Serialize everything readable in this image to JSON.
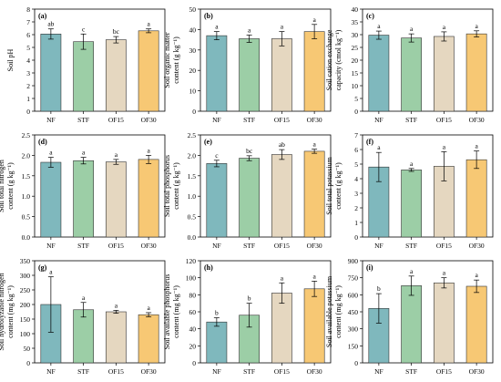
{
  "colors": {
    "NF": "#7fb8bd",
    "STF": "#9ccea6",
    "OF15": "#e5d7c0",
    "OF30": "#f7c874",
    "bar_stroke": "#333333"
  },
  "chart_data": [
    {
      "type": "bar",
      "panel_label": "(a)",
      "categories": [
        "NF",
        "STF",
        "OF15",
        "OF30"
      ],
      "values": [
        6.05,
        5.45,
        5.6,
        6.3
      ],
      "errors": [
        0.4,
        0.6,
        0.25,
        0.15
      ],
      "letters": [
        "ab",
        "c",
        "bc",
        "a"
      ],
      "ylabel_lines": [
        "Soil pH"
      ],
      "ylim": [
        0,
        8
      ],
      "yticks": [
        0,
        1,
        2,
        3,
        4,
        5,
        6,
        7,
        8
      ]
    },
    {
      "type": "bar",
      "panel_label": "(b)",
      "categories": [
        "NF",
        "STF",
        "OF15",
        "OF30"
      ],
      "values": [
        37,
        35.5,
        35.5,
        39
      ],
      "errors": [
        2,
        1.8,
        3.5,
        3.5
      ],
      "letters": [
        "a",
        "a",
        "a",
        "a"
      ],
      "ylabel_lines": [
        "Soil organic matter",
        "content (g kg⁻¹)"
      ],
      "ylim": [
        0,
        50
      ],
      "yticks": [
        0,
        10,
        20,
        30,
        40,
        50
      ]
    },
    {
      "type": "bar",
      "panel_label": "(c)",
      "categories": [
        "NF",
        "STF",
        "OF15",
        "OF30"
      ],
      "values": [
        29.8,
        28.7,
        29.3,
        30.3
      ],
      "errors": [
        1.6,
        1.6,
        1.8,
        1.2
      ],
      "letters": [
        "a",
        "a",
        "a",
        "a"
      ],
      "ylabel_lines": [
        "Soil cation exchange",
        "capacity (cmol kg⁻¹)"
      ],
      "ylim": [
        0,
        40
      ],
      "yticks": [
        0,
        5,
        10,
        15,
        20,
        25,
        30,
        35,
        40
      ]
    },
    {
      "type": "bar",
      "panel_label": "(d)",
      "categories": [
        "NF",
        "STF",
        "OF15",
        "OF30"
      ],
      "values": [
        1.83,
        1.87,
        1.84,
        1.9
      ],
      "errors": [
        0.12,
        0.08,
        0.06,
        0.1
      ],
      "letters": [
        "a",
        "a",
        "a",
        "a"
      ],
      "ylabel_lines": [
        "Soil total nitrogen",
        "content (g kg⁻¹)"
      ],
      "ylim": [
        0,
        2.5
      ],
      "yticks": [
        0,
        0.5,
        1.0,
        1.5,
        2.0,
        2.5
      ]
    },
    {
      "type": "bar",
      "panel_label": "(e)",
      "categories": [
        "NF",
        "STF",
        "OF15",
        "OF30"
      ],
      "values": [
        1.8,
        1.93,
        2.02,
        2.1
      ],
      "errors": [
        0.08,
        0.06,
        0.12,
        0.05
      ],
      "letters": [
        "c",
        "bc",
        "ab",
        "a"
      ],
      "ylabel_lines": [
        "Soil total phosphorus",
        "content (g kg⁻¹)"
      ],
      "ylim": [
        0,
        2.5
      ],
      "yticks": [
        0,
        0.5,
        1.0,
        1.5,
        2.0,
        2.5
      ]
    },
    {
      "type": "bar",
      "panel_label": "(f)",
      "categories": [
        "NF",
        "STF",
        "OF15",
        "OF30"
      ],
      "values": [
        4.8,
        4.6,
        4.85,
        5.3
      ],
      "errors": [
        1.0,
        0.1,
        1.0,
        0.6
      ],
      "letters": [
        "a",
        "a",
        "a",
        "a"
      ],
      "ylabel_lines": [
        "Soil total potassium",
        "content (g kg⁻¹)"
      ],
      "ylim": [
        0,
        7
      ],
      "yticks": [
        0,
        1,
        2,
        3,
        4,
        5,
        6,
        7
      ]
    },
    {
      "type": "bar",
      "panel_label": "(g)",
      "categories": [
        "NF",
        "STF",
        "OF15",
        "OF30"
      ],
      "values": [
        200,
        182,
        175,
        165
      ],
      "errors": [
        95,
        25,
        5,
        7
      ],
      "letters": [
        "a",
        "a",
        "a",
        "a"
      ],
      "ylabel_lines": [
        "Soil hydrolyzable nitrogen",
        "content (mg kg⁻¹)"
      ],
      "ylim": [
        0,
        350
      ],
      "yticks": [
        0,
        50,
        100,
        150,
        200,
        250,
        300,
        350
      ]
    },
    {
      "type": "bar",
      "panel_label": "(h)",
      "categories": [
        "NF",
        "STF",
        "OF15",
        "OF30"
      ],
      "values": [
        48,
        56,
        82,
        87
      ],
      "errors": [
        5,
        14,
        12,
        9
      ],
      "letters": [
        "b",
        "b",
        "a",
        "a"
      ],
      "ylabel_lines": [
        "Soil available phosphorus",
        "content (mg kg⁻¹)"
      ],
      "ylim": [
        0,
        120
      ],
      "yticks": [
        0,
        20,
        40,
        60,
        80,
        100,
        120
      ]
    },
    {
      "type": "bar",
      "panel_label": "(i)",
      "categories": [
        "NF",
        "STF",
        "OF15",
        "OF30"
      ],
      "values": [
        480,
        680,
        705,
        675
      ],
      "errors": [
        130,
        85,
        45,
        55
      ],
      "letters": [
        "b",
        "a",
        "a",
        "a"
      ],
      "ylabel_lines": [
        "Soil available potassium",
        "content (mg kg⁻¹)"
      ],
      "ylim": [
        0,
        900
      ],
      "yticks": [
        0,
        150,
        300,
        450,
        600,
        750,
        900
      ]
    }
  ]
}
